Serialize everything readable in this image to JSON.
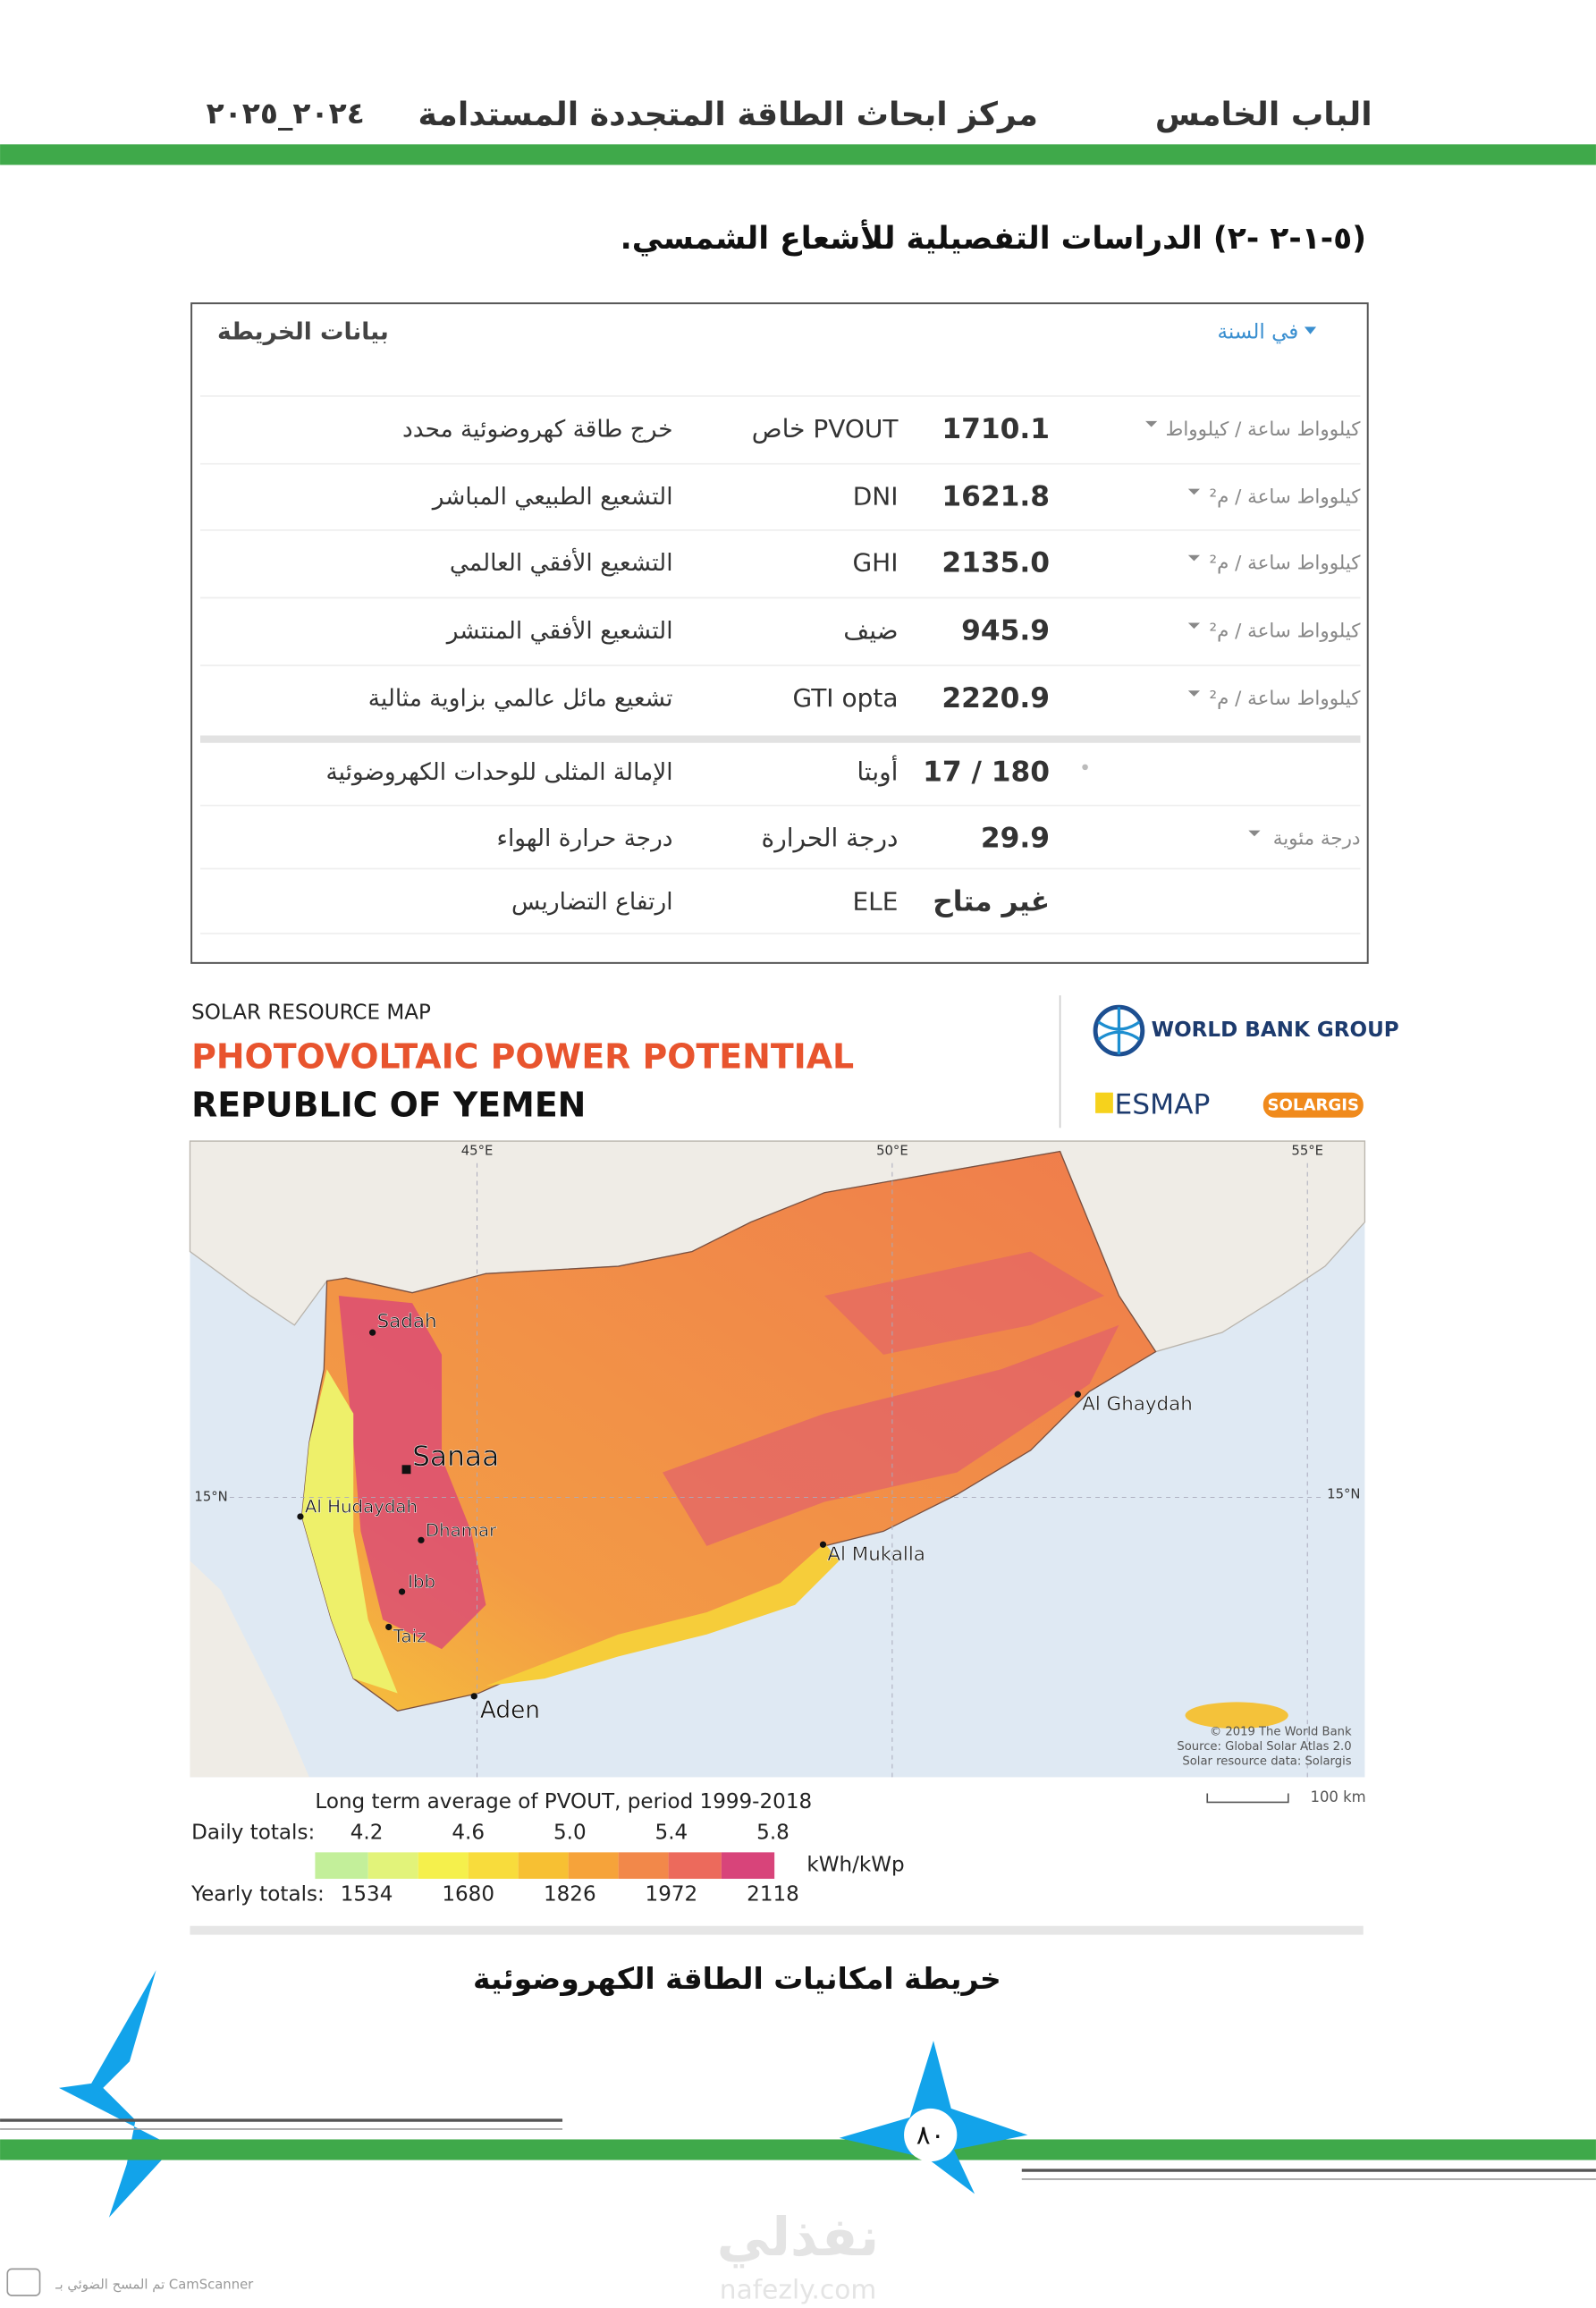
{
  "header": {
    "chapter": "الباب الخامس",
    "center": "مركز ابحاث الطاقة المتجددة المستدامة",
    "years": "٢٠٢٤_٢٠٢٥"
  },
  "section_title": "(٥-١-٢ -٢)  الدراسات التفصيلية للأشعاع الشمسي.",
  "map_data_panel": {
    "title": "بيانات الخريطة",
    "period": "في السنة",
    "rows": [
      {
        "unit": "كيلوواط ساعة / كيلوواط",
        "value": "1710.1",
        "code": "PVOUT خاص",
        "label": "خرج طاقة كهروضوئية محدد"
      },
      {
        "unit": "كيلوواط ساعة / م²",
        "value": "1621.8",
        "code": "DNI",
        "label": "التشعيع الطبيعي المباشر"
      },
      {
        "unit": "كيلوواط ساعة / م²",
        "value": "2135.0",
        "code": "GHI",
        "label": "التشعيع الأفقي العالمي"
      },
      {
        "unit": "كيلوواط ساعة / م²",
        "value": "945.9",
        "code": "ضيف",
        "label": "التشعيع الأفقي المنتشر"
      },
      {
        "unit": "كيلوواط ساعة / م²",
        "value": "2220.9",
        "code": "GTI opta",
        "label": "تشعيع مائل عالمي بزاوية مثالية"
      },
      {
        "value": "180 / 17",
        "code": "أوبتا",
        "label": "الإمالة المثلى للوحدات الكهروضوئية"
      },
      {
        "unit": "درجة مئوية",
        "value": "29.9",
        "code": "درجة الحرارة",
        "label": "درجة حرارة الهواء"
      },
      {
        "value": "غير متاح",
        "code": "ELE",
        "label": "ارتفاع التضاريس"
      }
    ]
  },
  "map": {
    "kicker": "SOLAR RESOURCE MAP",
    "title": "PHOTOVOLTAIC POWER POTENTIAL",
    "country": "REPUBLIC OF YEMEN",
    "logos": {
      "world_bank": "WORLD BANK GROUP",
      "esmap": "ESMAP",
      "solargis": "SOLARGIS"
    },
    "graticule": {
      "lon": [
        "45°E",
        "50°E",
        "55°E"
      ],
      "lat": "15°N"
    },
    "cities": [
      "Sadah",
      "Sanaa",
      "Al Hudaydah",
      "Dhamar",
      "Ibb",
      "Taiz",
      "Aden",
      "Al Ghaydah",
      "Al Mukalla"
    ],
    "credits": [
      "© 2019 The World Bank",
      "Source: Global Solar Atlas 2.0",
      "Solar resource data: Solargis"
    ],
    "scale": "100 km",
    "legend": {
      "title": "Long term average of PVOUT, period 1999-2018",
      "daily_label": "Daily totals:",
      "daily": [
        "4.2",
        "4.6",
        "5.0",
        "5.4",
        "5.8"
      ],
      "unit": "kWh/kWp",
      "yearly_label": "Yearly totals:",
      "yearly": [
        "1534",
        "1680",
        "1826",
        "1972",
        "2118"
      ]
    }
  },
  "caption": "خريطة امكانيات الطاقة الكهروضوئية",
  "page_number": "٨٠",
  "watermark": {
    "arabic": "نفذلي",
    "latin": "nafezly.com"
  },
  "scanner": "تم المسح الضوئي بـ CamScanner"
}
